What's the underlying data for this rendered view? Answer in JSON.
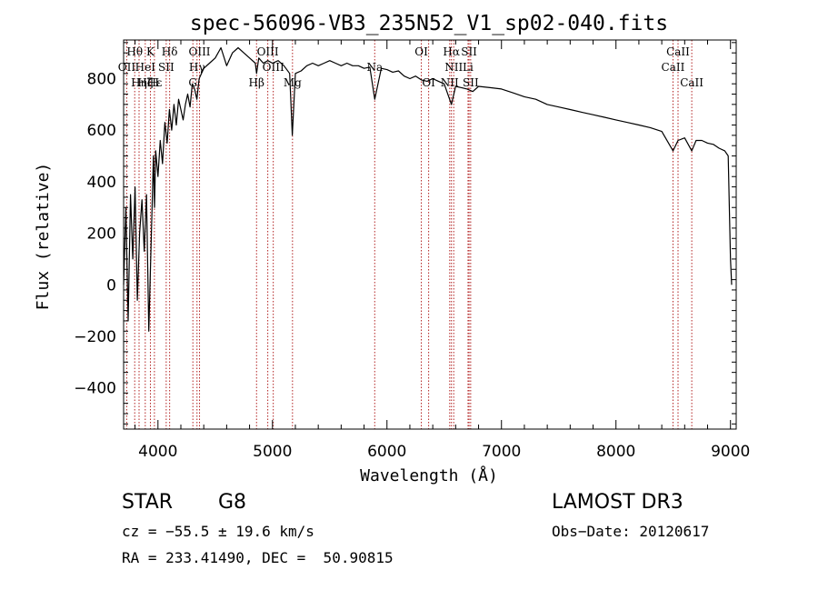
{
  "chart_data": {
    "type": "line",
    "title": "spec-56096-VB3_235N52_V1_sp02-040.fits",
    "xlabel": "Wavelength (Å)",
    "ylabel": "Flux (relative)",
    "xlim": [
      3700,
      9050
    ],
    "ylim": [
      -560,
      950
    ],
    "xticks": [
      4000,
      5000,
      6000,
      7000,
      8000,
      9000
    ],
    "yticks": [
      -400,
      -200,
      0,
      200,
      400,
      600,
      800
    ],
    "grid": false,
    "series": [
      {
        "name": "flux",
        "x": [
          3700,
          3720,
          3740,
          3760,
          3780,
          3800,
          3820,
          3840,
          3860,
          3880,
          3900,
          3920,
          3940,
          3960,
          3970,
          3980,
          4000,
          4020,
          4040,
          4060,
          4080,
          4100,
          4120,
          4140,
          4160,
          4180,
          4200,
          4220,
          4240,
          4260,
          4280,
          4300,
          4320,
          4340,
          4360,
          4380,
          4400,
          4450,
          4500,
          4550,
          4600,
          4650,
          4700,
          4750,
          4800,
          4850,
          4861,
          4880,
          4920,
          4960,
          5000,
          5050,
          5100,
          5150,
          5173,
          5200,
          5250,
          5300,
          5350,
          5400,
          5450,
          5500,
          5550,
          5600,
          5650,
          5700,
          5750,
          5800,
          5850,
          5893,
          5950,
          6000,
          6050,
          6100,
          6150,
          6200,
          6250,
          6300,
          6350,
          6400,
          6450,
          6500,
          6563,
          6600,
          6650,
          6700,
          6750,
          6800,
          6900,
          7000,
          7100,
          7200,
          7300,
          7400,
          7500,
          7600,
          7700,
          7800,
          7900,
          8000,
          8100,
          8200,
          8300,
          8400,
          8498,
          8542,
          8600,
          8662,
          8700,
          8750,
          8800,
          8850,
          8900,
          8950,
          8980,
          9000,
          9010
        ],
        "values": [
          0,
          300,
          -140,
          350,
          100,
          380,
          -60,
          200,
          330,
          130,
          350,
          -180,
          150,
          500,
          300,
          520,
          420,
          560,
          470,
          630,
          550,
          680,
          600,
          700,
          620,
          720,
          680,
          640,
          700,
          740,
          690,
          780,
          760,
          720,
          800,
          820,
          840,
          860,
          880,
          920,
          850,
          900,
          920,
          900,
          880,
          860,
          820,
          880,
          860,
          870,
          860,
          870,
          850,
          820,
          580,
          820,
          830,
          850,
          860,
          850,
          860,
          870,
          860,
          850,
          860,
          850,
          850,
          840,
          845,
          720,
          840,
          835,
          825,
          830,
          810,
          800,
          810,
          795,
          790,
          800,
          790,
          780,
          700,
          770,
          765,
          760,
          750,
          770,
          765,
          760,
          745,
          730,
          720,
          700,
          690,
          680,
          670,
          660,
          650,
          640,
          630,
          620,
          610,
          595,
          520,
          560,
          570,
          520,
          560,
          560,
          550,
          545,
          530,
          520,
          500,
          100,
          0
        ]
      }
    ],
    "line_labels": [
      {
        "text": "Hθ",
        "wavelength": 3797,
        "row": 0
      },
      {
        "text": "OII",
        "wavelength": 3727,
        "row": 1
      },
      {
        "text": "Hη",
        "wavelength": 3835,
        "row": 2
      },
      {
        "text": "HeI",
        "wavelength": 3889,
        "row": 1
      },
      {
        "text": "Hζ",
        "wavelength": 3889,
        "row": 2
      },
      {
        "text": "K",
        "wavelength": 3934,
        "row": 0
      },
      {
        "text": "SII",
        "wavelength": 4072,
        "row": 1
      },
      {
        "text": "Hε",
        "wavelength": 3970,
        "row": 2
      },
      {
        "text": "H",
        "wavelength": 3969,
        "row": 2
      },
      {
        "text": "Hδ",
        "wavelength": 4102,
        "row": 0
      },
      {
        "text": "OIII",
        "wavelength": 4363,
        "row": 0
      },
      {
        "text": "Hγ",
        "wavelength": 4341,
        "row": 1
      },
      {
        "text": "G",
        "wavelength": 4305,
        "row": 2
      },
      {
        "text": "Hβ",
        "wavelength": 4861,
        "row": 2
      },
      {
        "text": "OIII",
        "wavelength": 4959,
        "row": 0
      },
      {
        "text": "OIII",
        "wavelength": 5007,
        "row": 1
      },
      {
        "text": "Mg",
        "wavelength": 5175,
        "row": 2
      },
      {
        "text": "Na",
        "wavelength": 5893,
        "row": 1
      },
      {
        "text": "OI",
        "wavelength": 6300,
        "row": 0
      },
      {
        "text": "OI",
        "wavelength": 6364,
        "row": 2
      },
      {
        "text": "Hα",
        "wavelength": 6563,
        "row": 0
      },
      {
        "text": "NII",
        "wavelength": 6583,
        "row": 1
      },
      {
        "text": "NII",
        "wavelength": 6548,
        "row": 2
      },
      {
        "text": "SII",
        "wavelength": 6717,
        "row": 0
      },
      {
        "text": "Li",
        "wavelength": 6708,
        "row": 1
      },
      {
        "text": "SII",
        "wavelength": 6731,
        "row": 2
      },
      {
        "text": "CaII",
        "wavelength": 8542,
        "row": 0
      },
      {
        "text": "CaII",
        "wavelength": 8498,
        "row": 1
      },
      {
        "text": "CaII",
        "wavelength": 8662,
        "row": 2
      }
    ],
    "marker_lines": [
      3727,
      3797,
      3835,
      3889,
      3934,
      3969,
      4072,
      4102,
      4305,
      4341,
      4363,
      4861,
      4959,
      5007,
      5175,
      5893,
      6300,
      6364,
      6548,
      6563,
      6583,
      6708,
      6717,
      6731,
      8498,
      8542,
      8662
    ]
  },
  "info": {
    "object_type": "STAR",
    "subclass": "G8",
    "survey": "LAMOST DR3",
    "cz": "cz = −55.5 ± 19.6 km/s",
    "obs_date": "Obs−Date: 20120617",
    "coords": "RA = 233.41490, DEC =  50.90815"
  },
  "colors": {
    "marker_line": "#b22222",
    "spectrum": "#000000",
    "frame": "#000000"
  }
}
